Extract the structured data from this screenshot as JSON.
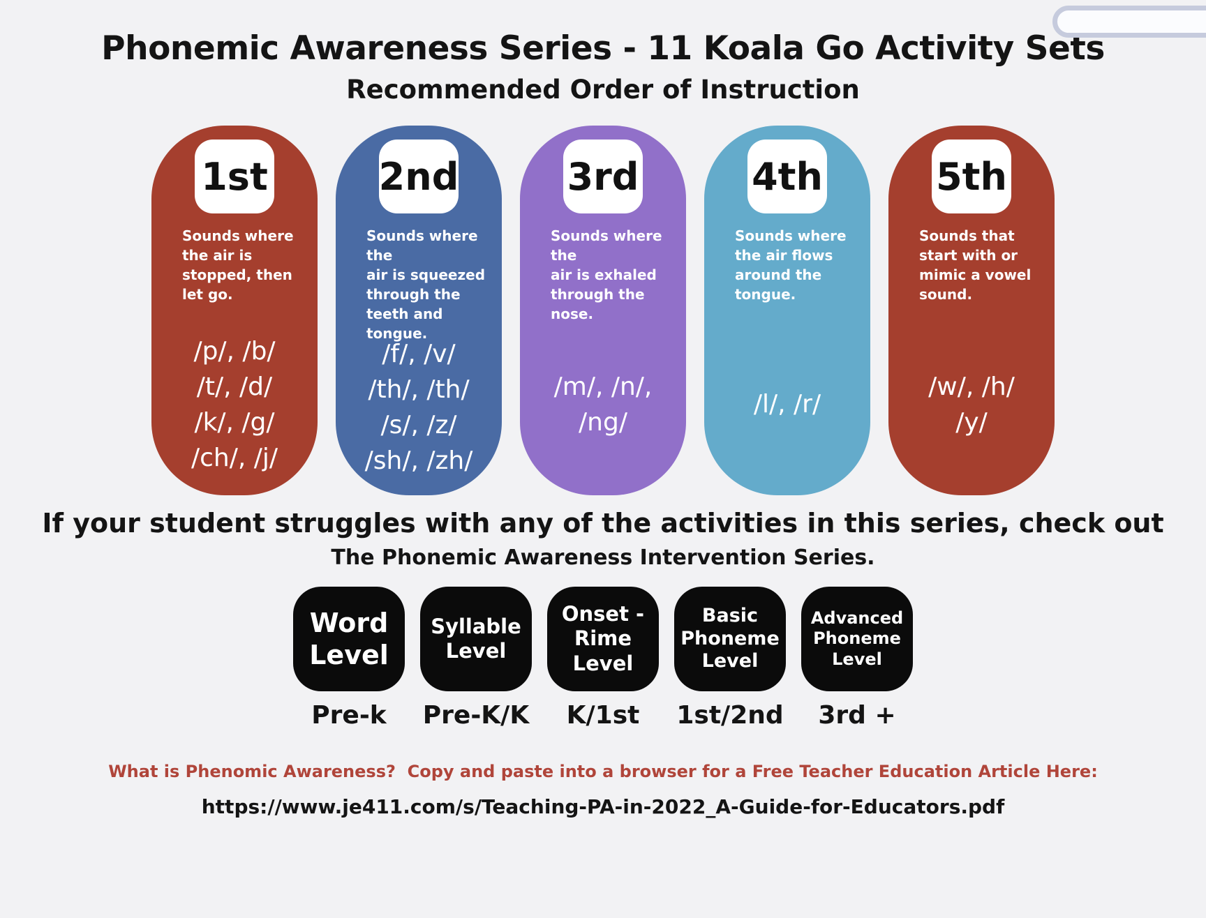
{
  "page": {
    "title": "Phonemic Awareness Series - 11 Koala Go Activity Sets",
    "subtitle": "Recommended Order of Instruction",
    "background_color": "#F2F2F4"
  },
  "cards": [
    {
      "rank": "1st",
      "color": "#A53F2E",
      "description": "Sounds where\nthe air is\nstopped, then\nlet go.",
      "phonemes": "/p/, /b/\n/t/, /d/\n/k/, /g/\n/ch/, /j/"
    },
    {
      "rank": "2nd",
      "color": "#4A6BA4",
      "description": "Sounds where the\nair is squeezed\nthrough the\nteeth and tongue.",
      "phonemes": "/f/, /v/\n/th/, /th/\n/s/, /z/\n/sh/, /zh/"
    },
    {
      "rank": "3rd",
      "color": "#9170C9",
      "description": "Sounds where the\nair is exhaled\nthrough the nose.",
      "phonemes": "/m/, /n/,\n/ng/"
    },
    {
      "rank": "4th",
      "color": "#64ABCB",
      "description": "Sounds where\nthe air flows\naround the\ntongue.",
      "phonemes": "/l/, /r/"
    },
    {
      "rank": "5th",
      "color": "#A53F2E",
      "description": "Sounds that\nstart with or\nmimic a vowel\nsound.",
      "phonemes": "/w/, /h/\n/y/"
    }
  ],
  "intervention": {
    "line1": "If your student struggles with any of the activities in this series, check out",
    "line2": "The Phonemic Awareness Intervention Series.",
    "box_color": "#0B0B0B",
    "levels": [
      {
        "label": "Word\nLevel",
        "grade": "Pre-k"
      },
      {
        "label": "Syllable\nLevel",
        "grade": "Pre-K/K"
      },
      {
        "label": "Onset -\nRime\nLevel",
        "grade": "K/1st"
      },
      {
        "label": "Basic\nPhoneme\nLevel",
        "grade": "1st/2nd"
      },
      {
        "label": "Advanced\nPhoneme\nLevel",
        "grade": "3rd +"
      }
    ]
  },
  "footer": {
    "question": "What is Phenomic Awareness?  Copy and paste into a browser for a Free Teacher Education Article Here:",
    "question_color": "#B0453A",
    "url": "https://www.je411.com/s/Teaching-PA-in-2022_A-Guide-for-Educators.pdf"
  }
}
